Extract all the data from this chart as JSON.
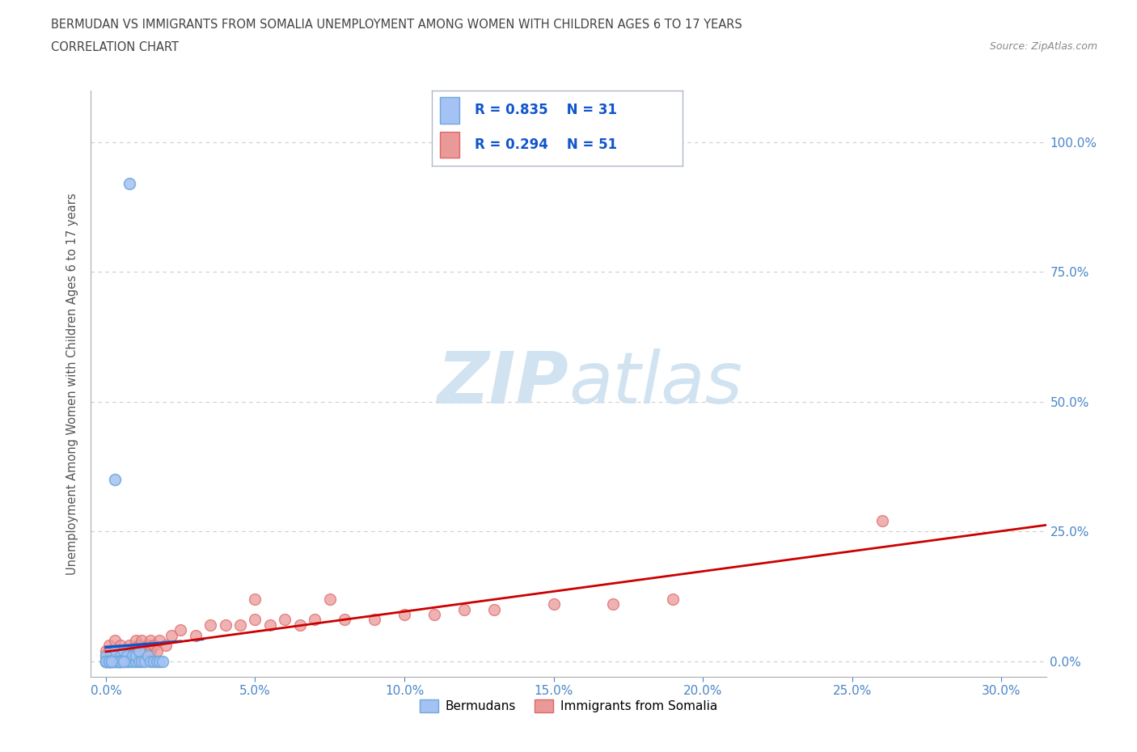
{
  "title_line1": "BERMUDAN VS IMMIGRANTS FROM SOMALIA UNEMPLOYMENT AMONG WOMEN WITH CHILDREN AGES 6 TO 17 YEARS",
  "title_line2": "CORRELATION CHART",
  "source": "Source: ZipAtlas.com",
  "xlabel_ticks": [
    "0.0%",
    "5.0%",
    "10.0%",
    "15.0%",
    "20.0%",
    "25.0%",
    "30.0%"
  ],
  "xlabel_vals": [
    0.0,
    0.05,
    0.1,
    0.15,
    0.2,
    0.25,
    0.3
  ],
  "ylabel_ticks": [
    "0.0%",
    "25.0%",
    "50.0%",
    "75.0%",
    "100.0%"
  ],
  "ylabel_vals": [
    0.0,
    0.25,
    0.5,
    0.75,
    1.0
  ],
  "xlim": [
    -0.005,
    0.315
  ],
  "ylim": [
    -0.03,
    1.1
  ],
  "blue_R": 0.835,
  "blue_N": 31,
  "pink_R": 0.294,
  "pink_N": 51,
  "legend_label_blue": "Bermudans",
  "legend_label_pink": "Immigrants from Somalia",
  "ylabel": "Unemployment Among Women with Children Ages 6 to 17 years",
  "blue_color": "#a4c2f4",
  "pink_color": "#ea9999",
  "blue_scatter_edge": "#6fa8dc",
  "pink_scatter_edge": "#e06666",
  "blue_line_color": "#1155cc",
  "pink_line_color": "#cc0000",
  "legend_text_color": "#1155cc",
  "watermark_color": "#cce0f0",
  "grid_color": "#cccccc",
  "grid_style": "--",
  "bg_color": "#ffffff",
  "title_color": "#434343",
  "axis_tick_color": "#4a86c8",
  "blue_x": [
    0.008,
    0.0,
    0.001,
    0.002,
    0.002,
    0.003,
    0.003,
    0.004,
    0.005,
    0.005,
    0.006,
    0.006,
    0.007,
    0.007,
    0.008,
    0.009,
    0.009,
    0.01,
    0.01,
    0.011,
    0.011,
    0.012,
    0.013,
    0.014,
    0.015,
    0.016,
    0.017,
    0.018,
    0.019,
    0.0,
    0.001
  ],
  "blue_y": [
    0.92,
    0.0,
    0.0,
    0.0,
    0.01,
    0.0,
    0.02,
    0.0,
    0.0,
    0.01,
    0.0,
    0.02,
    0.0,
    0.01,
    0.0,
    0.0,
    0.01,
    0.0,
    0.01,
    0.0,
    0.02,
    0.0,
    0.0,
    0.01,
    0.0,
    0.0,
    0.0,
    0.0,
    0.0,
    0.01,
    0.0
  ],
  "blue_extra_x": [
    0.0,
    0.0,
    0.001,
    0.001,
    0.002,
    0.003,
    0.004,
    0.004,
    0.005,
    0.003,
    0.005,
    0.006,
    0.0,
    0.001,
    0.002
  ],
  "blue_extra_y": [
    0.0,
    0.0,
    0.0,
    0.0,
    0.0,
    0.0,
    0.0,
    0.0,
    0.0,
    0.0,
    0.0,
    0.0,
    0.0,
    0.0,
    0.0
  ],
  "blue_high_x": [
    0.003
  ],
  "blue_high_y": [
    0.35
  ],
  "pink_x": [
    0.0,
    0.0,
    0.001,
    0.001,
    0.002,
    0.002,
    0.003,
    0.003,
    0.004,
    0.004,
    0.005,
    0.005,
    0.006,
    0.007,
    0.008,
    0.009,
    0.01,
    0.01,
    0.011,
    0.012,
    0.013,
    0.014,
    0.015,
    0.015,
    0.016,
    0.017,
    0.018,
    0.02,
    0.022,
    0.025,
    0.03,
    0.035,
    0.04,
    0.045,
    0.05,
    0.055,
    0.06,
    0.065,
    0.07,
    0.08,
    0.09,
    0.1,
    0.11,
    0.12,
    0.13,
    0.15,
    0.17,
    0.19,
    0.05,
    0.075,
    0.26
  ],
  "pink_y": [
    0.0,
    0.02,
    0.0,
    0.03,
    0.0,
    0.02,
    0.01,
    0.04,
    0.0,
    0.02,
    0.01,
    0.03,
    0.02,
    0.02,
    0.03,
    0.02,
    0.04,
    0.02,
    0.03,
    0.04,
    0.02,
    0.03,
    0.04,
    0.02,
    0.03,
    0.02,
    0.04,
    0.03,
    0.05,
    0.06,
    0.05,
    0.07,
    0.07,
    0.07,
    0.08,
    0.07,
    0.08,
    0.07,
    0.08,
    0.08,
    0.08,
    0.09,
    0.09,
    0.1,
    0.1,
    0.11,
    0.11,
    0.12,
    0.12,
    0.12,
    0.27
  ],
  "pink_extra_x": [
    0.0,
    0.0,
    0.001,
    0.001,
    0.002,
    0.003,
    0.004,
    0.005,
    0.006,
    0.007,
    0.008
  ],
  "pink_extra_y": [
    0.0,
    0.01,
    0.01,
    0.02,
    0.01,
    0.02,
    0.01,
    0.02,
    0.01,
    0.02,
    0.01
  ]
}
